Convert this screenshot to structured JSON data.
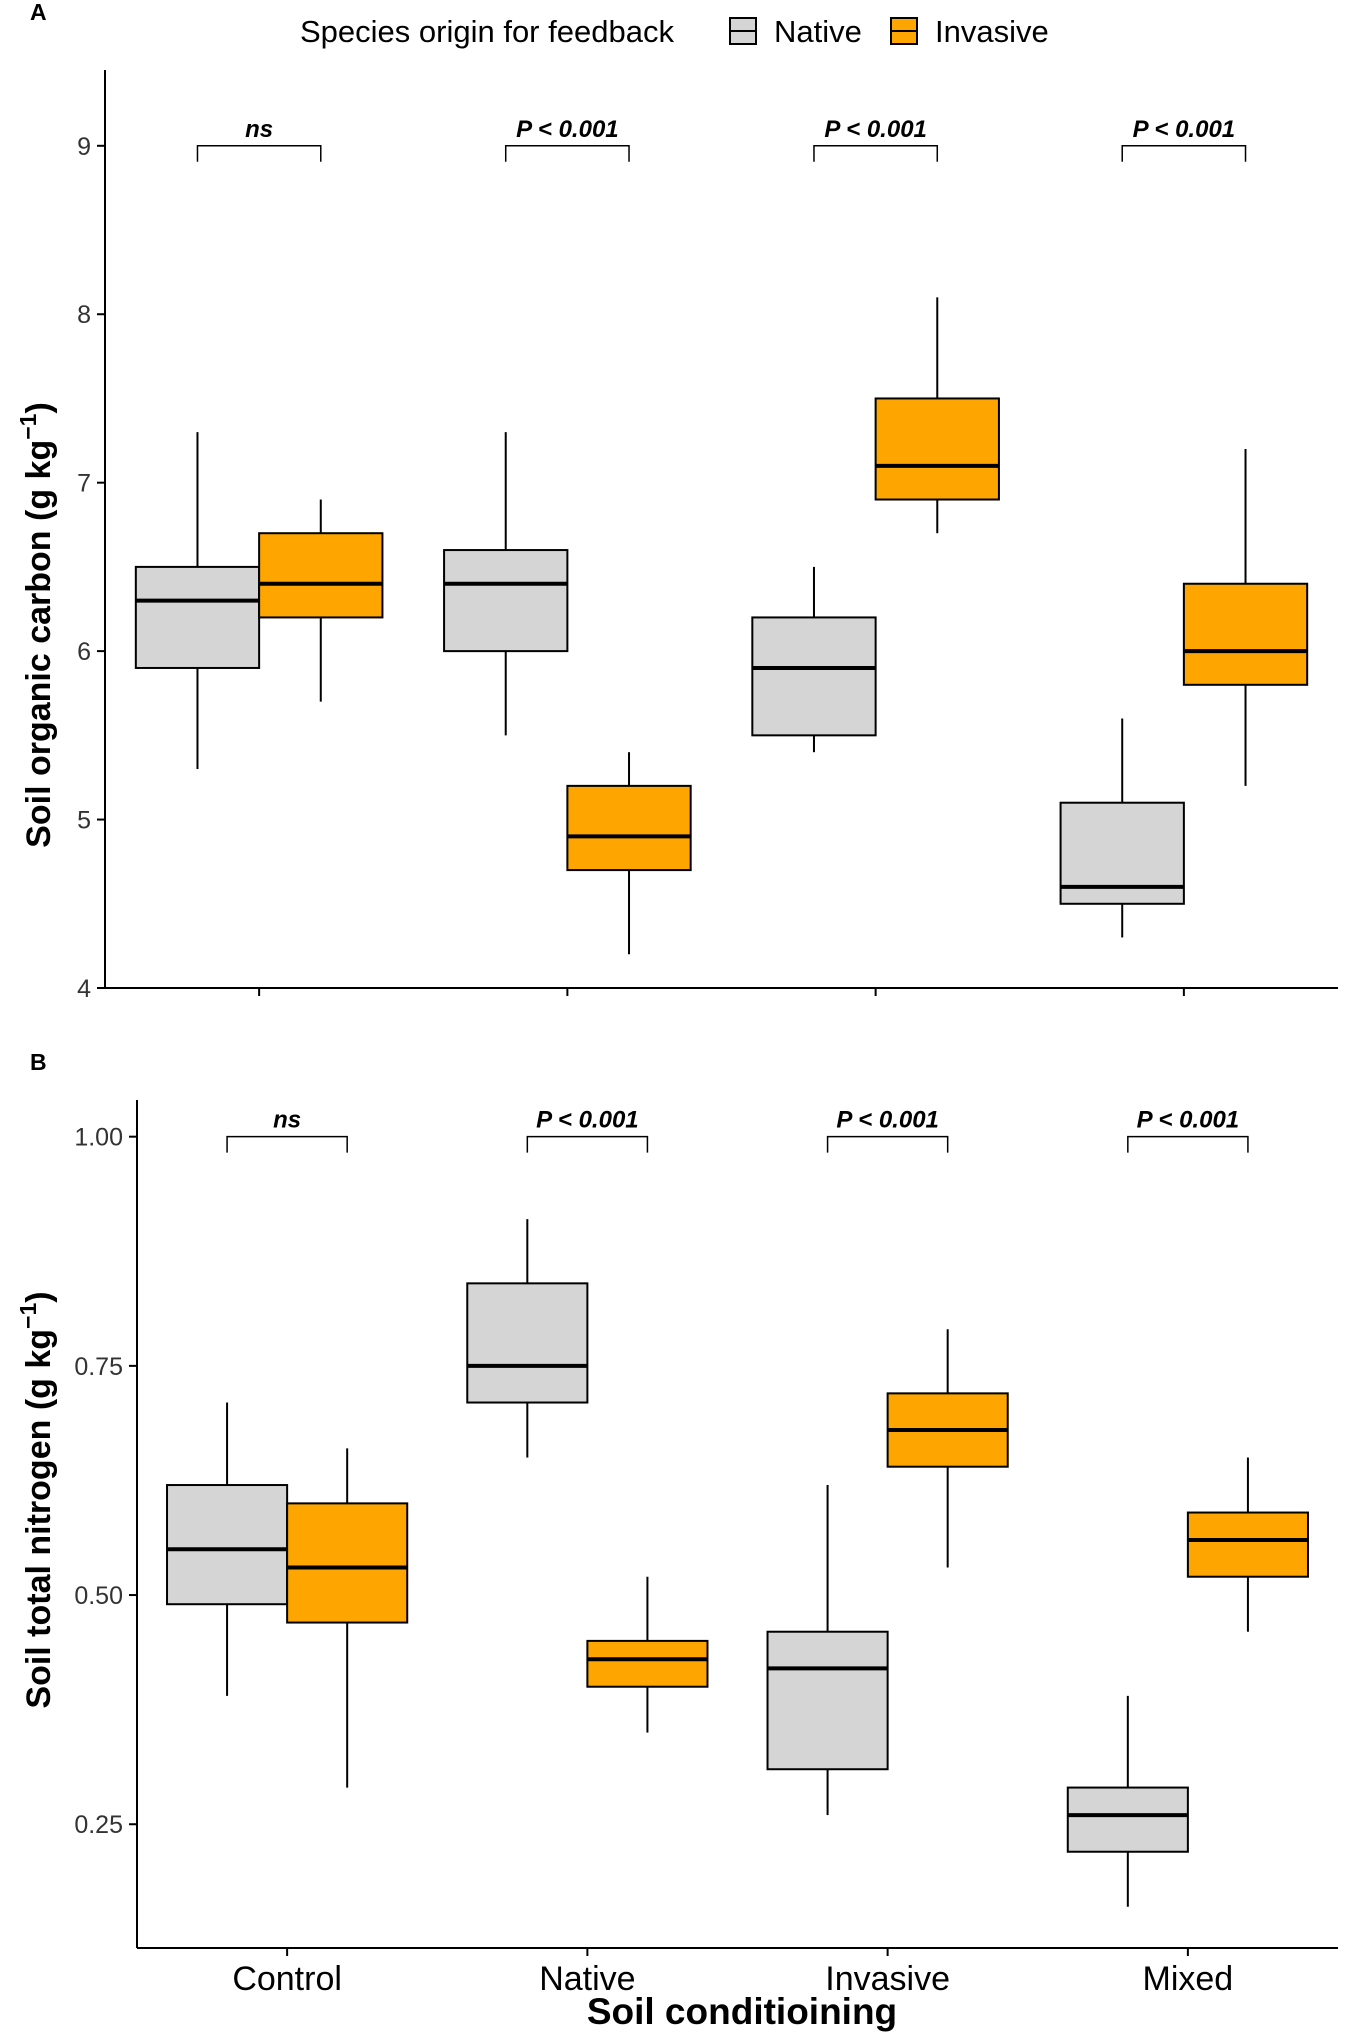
{
  "legend": {
    "title": "Species origin for feedback",
    "items": [
      {
        "label": "Native",
        "color": "#d5d5d5"
      },
      {
        "label": "Invasive",
        "color": "#ffa500"
      }
    ]
  },
  "chart_data": [
    {
      "type": "boxplot",
      "panel_label": "A",
      "ylabel_main": "Soil organic carbon (g kg",
      "ylabel_sup": "−1",
      "ylabel_end": ")",
      "ylim": [
        4,
        9.45
      ],
      "yticks": [
        4,
        5,
        6,
        7,
        8,
        9
      ],
      "ytick_labels": [
        "4",
        "5",
        "6",
        "7",
        "8",
        "9"
      ],
      "categories": [
        "Control",
        "Native",
        "Invasive",
        "Mixed"
      ],
      "bracket_y": 9.0,
      "significance": [
        "ns",
        "P < 0.001",
        "P < 0.001",
        "P < 0.001"
      ],
      "series": [
        {
          "name": "Native",
          "color": "#d5d5d5",
          "boxes": [
            {
              "whislo": 5.3,
              "q1": 5.9,
              "med": 6.3,
              "q3": 6.5,
              "whishi": 7.3
            },
            {
              "whislo": 5.5,
              "q1": 6.0,
              "med": 6.4,
              "q3": 6.6,
              "whishi": 7.3
            },
            {
              "whislo": 5.4,
              "q1": 5.5,
              "med": 5.9,
              "q3": 6.2,
              "whishi": 6.5
            },
            {
              "whislo": 4.3,
              "q1": 4.5,
              "med": 4.6,
              "q3": 5.1,
              "whishi": 5.6
            }
          ]
        },
        {
          "name": "Invasive",
          "color": "#ffa500",
          "boxes": [
            {
              "whislo": 5.7,
              "q1": 6.2,
              "med": 6.4,
              "q3": 6.7,
              "whishi": 6.9
            },
            {
              "whislo": 4.2,
              "q1": 4.7,
              "med": 4.9,
              "q3": 5.2,
              "whishi": 5.4
            },
            {
              "whislo": 6.7,
              "q1": 6.9,
              "med": 7.1,
              "q3": 7.5,
              "whishi": 8.1
            },
            {
              "whislo": 5.2,
              "q1": 5.8,
              "med": 6.0,
              "q3": 6.4,
              "whishi": 7.2
            }
          ]
        }
      ]
    },
    {
      "type": "boxplot",
      "panel_label": "B",
      "ylabel_main": "Soil total nitrogen (g kg",
      "ylabel_sup": "−1",
      "ylabel_end": ")",
      "ylim": [
        0.115,
        1.04
      ],
      "yticks": [
        0.25,
        0.5,
        0.75,
        1.0
      ],
      "ytick_labels": [
        "0.25",
        "0.50",
        "0.75",
        "1.00"
      ],
      "categories": [
        "Control",
        "Native",
        "Invasive",
        "Mixed"
      ],
      "xlabel": "Soil conditioining",
      "bracket_y": 1.0,
      "significance": [
        "ns",
        "P < 0.001",
        "P < 0.001",
        "P < 0.001"
      ],
      "series": [
        {
          "name": "Native",
          "color": "#d5d5d5",
          "boxes": [
            {
              "whislo": 0.39,
              "q1": 0.49,
              "med": 0.55,
              "q3": 0.62,
              "whishi": 0.71
            },
            {
              "whislo": 0.65,
              "q1": 0.71,
              "med": 0.75,
              "q3": 0.84,
              "whishi": 0.91
            },
            {
              "whislo": 0.26,
              "q1": 0.31,
              "med": 0.42,
              "q3": 0.46,
              "whishi": 0.62
            },
            {
              "whislo": 0.16,
              "q1": 0.22,
              "med": 0.26,
              "q3": 0.29,
              "whishi": 0.39
            }
          ]
        },
        {
          "name": "Invasive",
          "color": "#ffa500",
          "boxes": [
            {
              "whislo": 0.29,
              "q1": 0.47,
              "med": 0.53,
              "q3": 0.6,
              "whishi": 0.66
            },
            {
              "whislo": 0.35,
              "q1": 0.4,
              "med": 0.43,
              "q3": 0.45,
              "whishi": 0.52
            },
            {
              "whislo": 0.53,
              "q1": 0.64,
              "med": 0.68,
              "q3": 0.72,
              "whishi": 0.79
            },
            {
              "whislo": 0.46,
              "q1": 0.52,
              "med": 0.56,
              "q3": 0.59,
              "whishi": 0.65
            }
          ]
        }
      ]
    }
  ]
}
